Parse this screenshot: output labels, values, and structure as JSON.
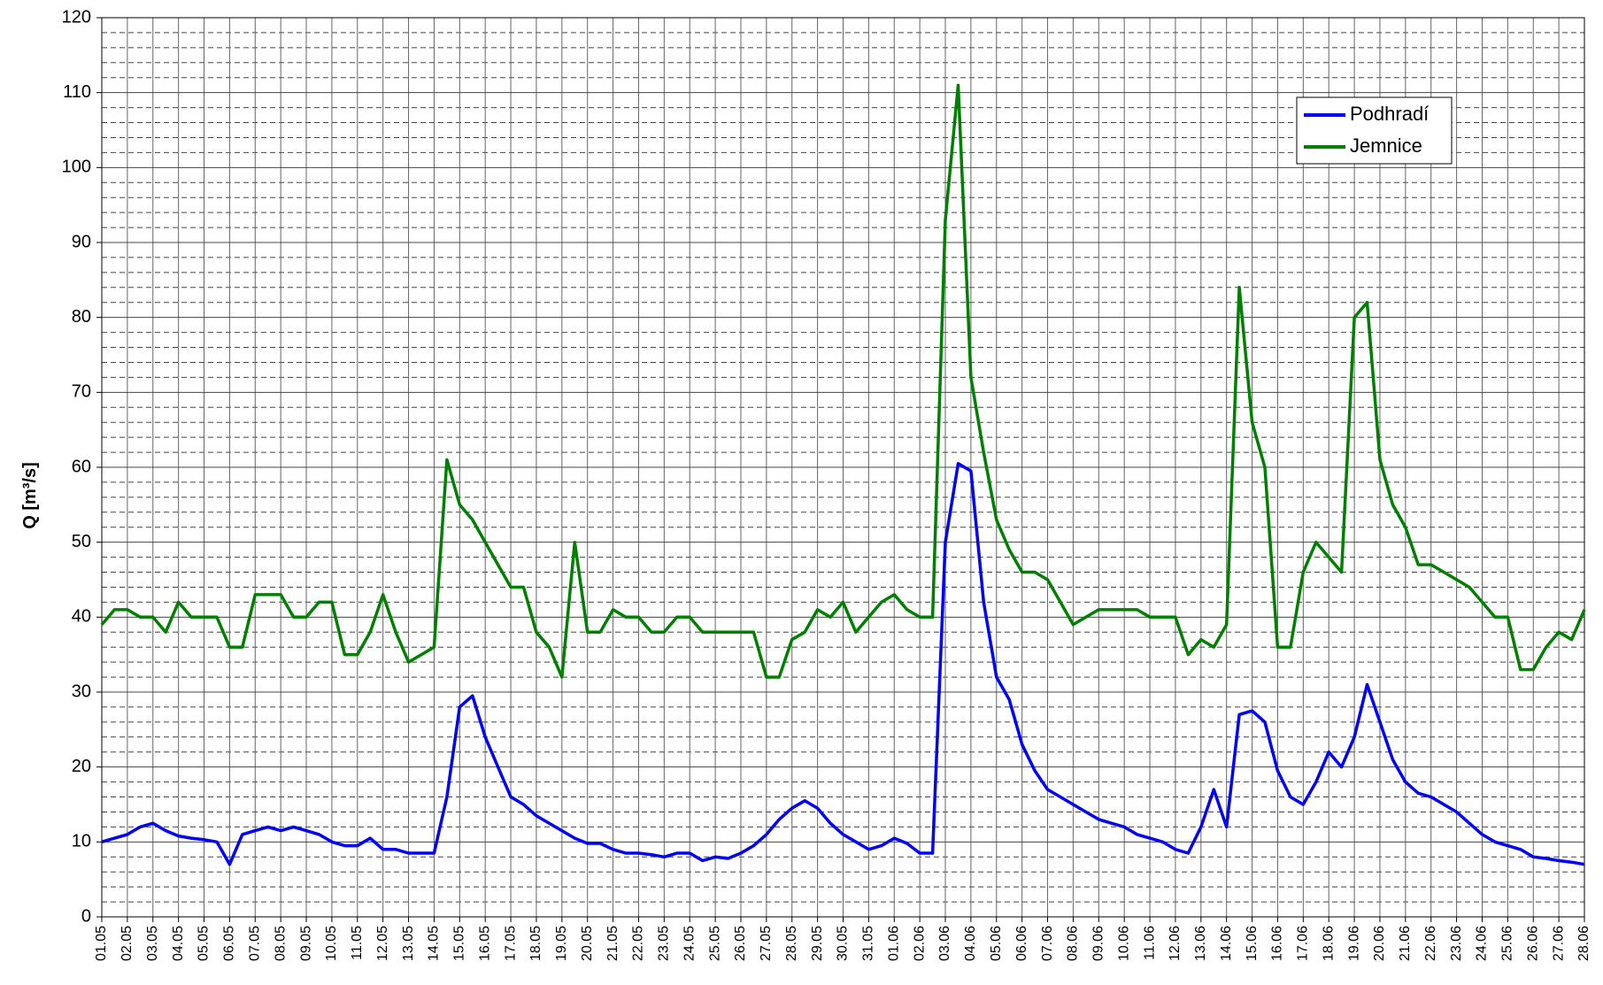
{
  "chart_data": {
    "type": "line",
    "y_label": "Q [m³/s]",
    "categories": [
      "01.05",
      null,
      "02.05",
      null,
      "03.05",
      null,
      "04.05",
      null,
      "05.05",
      null,
      "06.05",
      null,
      "07.05",
      null,
      "08.05",
      null,
      "09.05",
      null,
      "10.05",
      null,
      "11.05",
      null,
      "12.05",
      null,
      "13.05",
      null,
      "14.05",
      null,
      "15.05",
      null,
      "16.05",
      null,
      "17.05",
      null,
      "18.05",
      null,
      "19.05",
      null,
      "20.05",
      null,
      "21.05",
      null,
      "22.05",
      null,
      "23.05",
      null,
      "24.05",
      null,
      "25.05",
      null,
      "26.05",
      null,
      "27.05",
      null,
      "28.05",
      null,
      "29.05",
      null,
      "30.05",
      null,
      "31.05",
      null,
      "01.06",
      null,
      "02.06",
      null,
      "03.06",
      null,
      "04.06",
      null,
      "05.06",
      null,
      "06.06",
      null,
      "07.06",
      null,
      "08.06",
      null,
      "09.06",
      null,
      "10.06",
      null,
      "11.06",
      null,
      "12.06",
      null,
      "13.06",
      null,
      "14.06",
      null,
      "15.06",
      null,
      "16.06",
      null,
      "17.06",
      null,
      "18.06",
      null,
      "19.06",
      null,
      "20.06",
      null,
      "21.06",
      null,
      "22.06",
      null,
      "23.06",
      null,
      "24.06",
      null,
      "25.06",
      null,
      "26.06",
      null,
      "27.06",
      null,
      "28.06"
    ],
    "series": [
      {
        "name": "Podhradí",
        "color": "#0000ff",
        "values": [
          10,
          10.5,
          11,
          12,
          12.5,
          11.5,
          10.8,
          10.5,
          10.3,
          10,
          7,
          11,
          11.5,
          12,
          11.5,
          12,
          11.5,
          11,
          10,
          9.5,
          9.5,
          10.5,
          9,
          9,
          8.5,
          8.5,
          8.5,
          16,
          28,
          29.5,
          24,
          20,
          16,
          15,
          13.5,
          12.5,
          11.5,
          10.5,
          9.8,
          9.8,
          9,
          8.5,
          8.5,
          8.3,
          8,
          8.5,
          8.5,
          7.5,
          8,
          7.8,
          8.5,
          9.5,
          11,
          13,
          14.5,
          15.5,
          14.5,
          12.5,
          11,
          10,
          9,
          9.5,
          10.5,
          9.8,
          8.5,
          8.5,
          50,
          60.5,
          59.5,
          42,
          32,
          29,
          23,
          19.5,
          17,
          16,
          15,
          14,
          13,
          12.5,
          12,
          11,
          10.5,
          10,
          9,
          8.5,
          12,
          17,
          12,
          27,
          27.5,
          26,
          19.5,
          16,
          15,
          18,
          22,
          20,
          24,
          31,
          26,
          21,
          18,
          16.5,
          16,
          15,
          14,
          12.5,
          11,
          10,
          9.5,
          9,
          8,
          7.8,
          7.5,
          7.3,
          7
        ]
      },
      {
        "name": "Jemnice",
        "color": "#008000",
        "values": [
          39,
          41,
          41,
          40,
          40,
          38,
          42,
          40,
          40,
          40,
          36,
          36,
          43,
          43,
          43,
          40,
          40,
          42,
          42,
          35,
          35,
          38,
          43,
          38,
          34,
          35,
          36,
          61,
          55,
          53,
          50,
          47,
          44,
          44,
          38,
          36,
          32,
          50,
          38,
          38,
          41,
          40,
          40,
          38,
          38,
          40,
          40,
          38,
          38,
          38,
          38,
          38,
          32,
          32,
          37,
          38,
          41,
          40,
          42,
          38,
          40,
          42,
          43,
          41,
          40,
          40,
          93,
          111,
          72,
          62,
          53,
          49,
          46,
          46,
          45,
          42,
          39,
          40,
          41,
          41,
          41,
          41,
          40,
          40,
          40,
          35,
          37,
          36,
          39,
          84,
          66,
          60,
          36,
          36,
          46,
          50,
          48,
          46,
          80,
          82,
          61,
          55,
          52,
          47,
          47,
          46,
          45,
          44,
          42,
          40,
          40,
          33,
          33,
          36,
          38,
          37,
          41
        ]
      }
    ],
    "ylim": [
      0,
      120
    ],
    "yticks": [
      0,
      10,
      20,
      30,
      40,
      50,
      60,
      70,
      80,
      90,
      100,
      110,
      120
    ],
    "minor_yticks": [
      2,
      4,
      6,
      8,
      12,
      14,
      16,
      18,
      22,
      24,
      26,
      28,
      32,
      34,
      36,
      38,
      42,
      44,
      46,
      48,
      52,
      54,
      56,
      58,
      62,
      64,
      66,
      68,
      72,
      74,
      76,
      78,
      82,
      84,
      86,
      88,
      92,
      94,
      96,
      98,
      102,
      104,
      106,
      108,
      112,
      114,
      116,
      118
    ],
    "grid": true,
    "legend": "upper right"
  }
}
